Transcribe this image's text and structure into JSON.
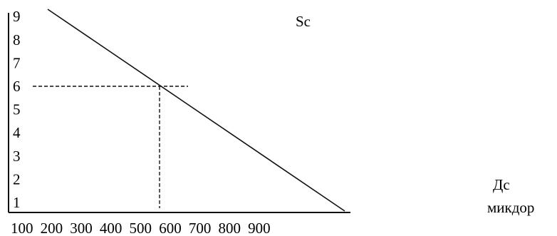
{
  "chart_data": {
    "type": "line",
    "title": "",
    "xlabel": "",
    "ylabel": "",
    "x_ticks": [
      "100",
      "200",
      "300",
      "400",
      "500",
      "600",
      "700",
      "800",
      "900"
    ],
    "y_ticks": [
      "1",
      "2",
      "3",
      "4",
      "5",
      "6",
      "7",
      "8",
      "9"
    ],
    "series": [
      {
        "name": "Дс",
        "x": [
          130,
          1000
        ],
        "y": [
          9.6,
          0.9
        ]
      }
    ],
    "annotations": [
      {
        "text": "Sc"
      },
      {
        "text": "Дс"
      },
      {
        "text": "микдор"
      }
    ],
    "reference_point": {
      "x": 500,
      "y": 6
    },
    "grid": false,
    "legend": "none"
  }
}
